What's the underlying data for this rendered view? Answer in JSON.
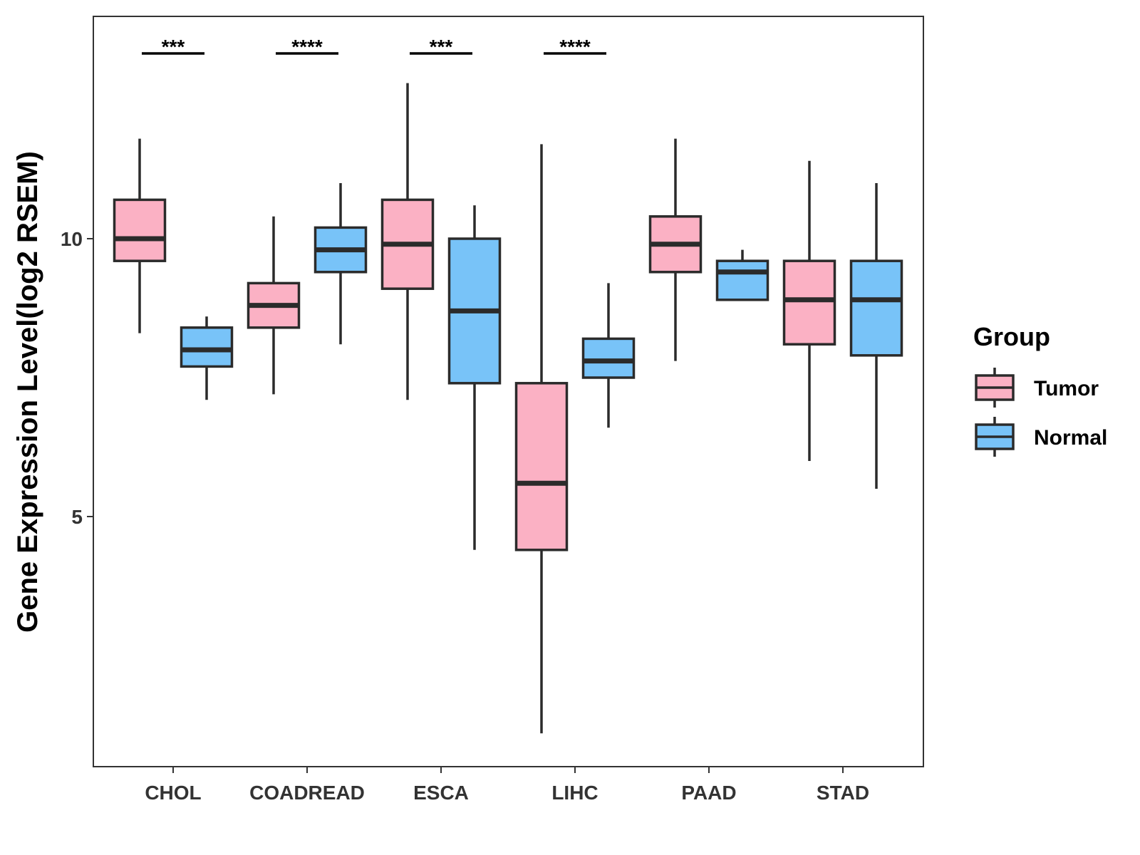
{
  "chart_data": {
    "type": "boxplot",
    "ylabel": "Gene Expression Level(log2 RSEM)",
    "xlabel": "",
    "ylim": [
      0.5,
      14.0
    ],
    "yticks": [
      5,
      10
    ],
    "categories": [
      "CHOL",
      "COADREAD",
      "ESCA",
      "LIHC",
      "PAAD",
      "STAD"
    ],
    "groups": [
      {
        "name": "Tumor",
        "color": "#FBB1C4"
      },
      {
        "name": "Normal",
        "color": "#78C3F8"
      }
    ],
    "boxes": [
      {
        "category": "CHOL",
        "group": "Tumor",
        "min": 8.3,
        "q1": 9.6,
        "median": 10.0,
        "q3": 10.7,
        "max": 11.8
      },
      {
        "category": "CHOL",
        "group": "Normal",
        "min": 7.1,
        "q1": 7.7,
        "median": 8.0,
        "q3": 8.4,
        "max": 8.6
      },
      {
        "category": "COADREAD",
        "group": "Tumor",
        "min": 7.2,
        "q1": 8.4,
        "median": 8.8,
        "q3": 9.2,
        "max": 10.4
      },
      {
        "category": "COADREAD",
        "group": "Normal",
        "min": 8.1,
        "q1": 9.4,
        "median": 9.8,
        "q3": 10.2,
        "max": 11.0
      },
      {
        "category": "ESCA",
        "group": "Tumor",
        "min": 7.1,
        "q1": 9.1,
        "median": 9.9,
        "q3": 10.7,
        "max": 12.8
      },
      {
        "category": "ESCA",
        "group": "Normal",
        "min": 4.4,
        "q1": 7.4,
        "median": 8.7,
        "q3": 10.0,
        "max": 10.6
      },
      {
        "category": "LIHC",
        "group": "Tumor",
        "min": 1.1,
        "q1": 4.4,
        "median": 5.6,
        "q3": 7.4,
        "max": 11.7
      },
      {
        "category": "LIHC",
        "group": "Normal",
        "min": 6.6,
        "q1": 7.5,
        "median": 7.8,
        "q3": 8.2,
        "max": 9.2
      },
      {
        "category": "PAAD",
        "group": "Tumor",
        "min": 7.8,
        "q1": 9.4,
        "median": 9.9,
        "q3": 10.4,
        "max": 11.8
      },
      {
        "category": "PAAD",
        "group": "Normal",
        "min": 8.9,
        "q1": 8.9,
        "median": 9.4,
        "q3": 9.6,
        "max": 9.8
      },
      {
        "category": "STAD",
        "group": "Tumor",
        "min": 6.0,
        "q1": 8.1,
        "median": 8.9,
        "q3": 9.6,
        "max": 11.4
      },
      {
        "category": "STAD",
        "group": "Normal",
        "min": 5.5,
        "q1": 7.9,
        "median": 8.9,
        "q3": 9.6,
        "max": 11.0
      }
    ],
    "significance": [
      {
        "category": "CHOL",
        "label": "***"
      },
      {
        "category": "COADREAD",
        "label": "****"
      },
      {
        "category": "ESCA",
        "label": "***"
      },
      {
        "category": "LIHC",
        "label": "****"
      }
    ],
    "legend": {
      "title": "Group",
      "position": "right"
    }
  }
}
